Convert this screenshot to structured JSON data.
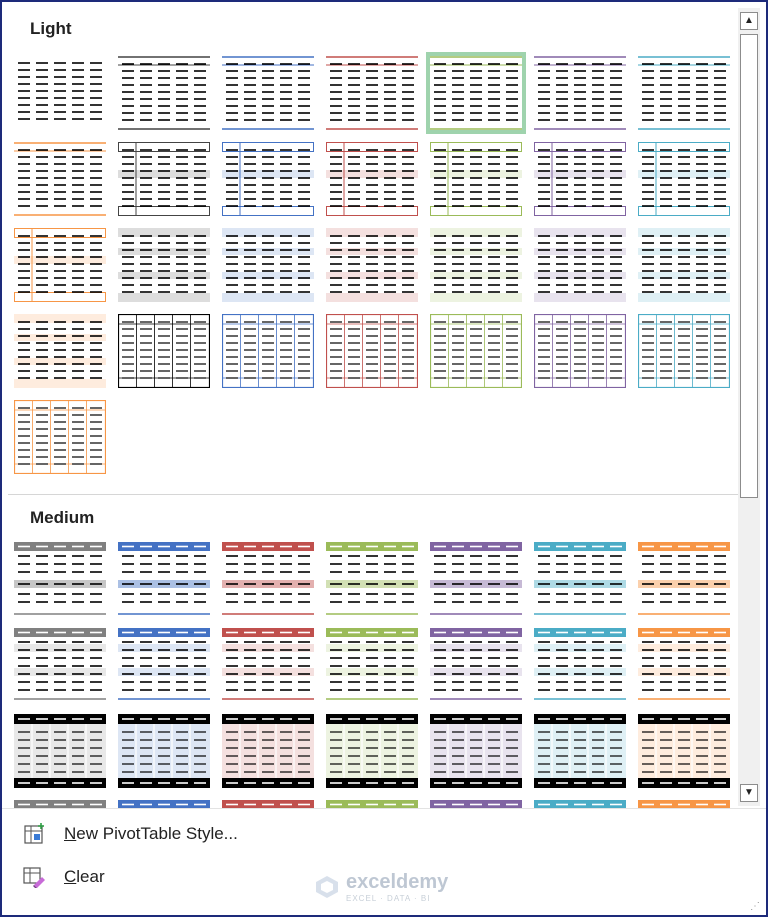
{
  "gallery": {
    "sections": [
      {
        "title": "Light",
        "styles": [
          {
            "kind": "plain",
            "color": "#000000"
          },
          {
            "kind": "rowlines",
            "color": "#444444"
          },
          {
            "kind": "rowlines",
            "color": "#4472c4"
          },
          {
            "kind": "rowlines",
            "color": "#c0504d"
          },
          {
            "kind": "rowlines",
            "color": "#9bbb59",
            "selected": true
          },
          {
            "kind": "rowlines",
            "color": "#8064a2"
          },
          {
            "kind": "rowlines",
            "color": "#4bacc6"
          },
          {
            "kind": "rowlines",
            "color": "#f79646"
          },
          {
            "kind": "boxed",
            "color": "#444444"
          },
          {
            "kind": "boxed",
            "color": "#4472c4"
          },
          {
            "kind": "boxed",
            "color": "#c0504d"
          },
          {
            "kind": "boxed",
            "color": "#9bbb59"
          },
          {
            "kind": "boxed",
            "color": "#8064a2"
          },
          {
            "kind": "boxed",
            "color": "#4bacc6"
          },
          {
            "kind": "boxed",
            "color": "#f79646"
          },
          {
            "kind": "banded",
            "color": "#444444"
          },
          {
            "kind": "banded",
            "color": "#4472c4"
          },
          {
            "kind": "banded",
            "color": "#c0504d"
          },
          {
            "kind": "banded",
            "color": "#9bbb59"
          },
          {
            "kind": "banded",
            "color": "#8064a2"
          },
          {
            "kind": "banded",
            "color": "#4bacc6"
          },
          {
            "kind": "banded",
            "color": "#f79646"
          },
          {
            "kind": "grid",
            "color": "#000000"
          },
          {
            "kind": "grid",
            "color": "#4472c4"
          },
          {
            "kind": "grid",
            "color": "#c0504d"
          },
          {
            "kind": "grid",
            "color": "#9bbb59"
          },
          {
            "kind": "grid",
            "color": "#8064a2"
          },
          {
            "kind": "grid",
            "color": "#4bacc6"
          },
          {
            "kind": "grid",
            "color": "#f79646"
          }
        ]
      },
      {
        "title": "Medium",
        "styles": [
          {
            "kind": "medA",
            "color": "#808080"
          },
          {
            "kind": "medA",
            "color": "#4472c4"
          },
          {
            "kind": "medA",
            "color": "#c0504d"
          },
          {
            "kind": "medA",
            "color": "#9bbb59"
          },
          {
            "kind": "medA",
            "color": "#8064a2"
          },
          {
            "kind": "medA",
            "color": "#4bacc6"
          },
          {
            "kind": "medA",
            "color": "#f79646"
          },
          {
            "kind": "medB",
            "color": "#808080"
          },
          {
            "kind": "medB",
            "color": "#4472c4"
          },
          {
            "kind": "medB",
            "color": "#c0504d"
          },
          {
            "kind": "medB",
            "color": "#9bbb59"
          },
          {
            "kind": "medB",
            "color": "#8064a2"
          },
          {
            "kind": "medB",
            "color": "#4bacc6"
          },
          {
            "kind": "medB",
            "color": "#f79646"
          },
          {
            "kind": "medC",
            "color": "#808080"
          },
          {
            "kind": "medC",
            "color": "#4472c4"
          },
          {
            "kind": "medC",
            "color": "#c0504d"
          },
          {
            "kind": "medC",
            "color": "#9bbb59"
          },
          {
            "kind": "medC",
            "color": "#8064a2"
          },
          {
            "kind": "medC",
            "color": "#4bacc6"
          },
          {
            "kind": "medC",
            "color": "#f79646"
          },
          {
            "kind": "medA",
            "color": "#808080"
          },
          {
            "kind": "medA",
            "color": "#4472c4"
          },
          {
            "kind": "medA",
            "color": "#c0504d"
          },
          {
            "kind": "medA",
            "color": "#9bbb59"
          },
          {
            "kind": "medA",
            "color": "#8064a2"
          },
          {
            "kind": "medA",
            "color": "#4bacc6"
          },
          {
            "kind": "medA",
            "color": "#f79646"
          }
        ]
      }
    ]
  },
  "scrollbar": {
    "up_icon": "triangle-up-icon",
    "down_icon": "triangle-down-icon"
  },
  "menu": {
    "new_style": {
      "accel": "N",
      "before": "",
      "after": "ew PivotTable Style...",
      "icon": "new-table-style-icon"
    },
    "clear": {
      "accel": "C",
      "before": "",
      "after": "lear",
      "icon": "clear-style-icon"
    }
  },
  "watermark": {
    "name": "exceldemy",
    "tagline": "EXCEL · DATA · BI"
  }
}
